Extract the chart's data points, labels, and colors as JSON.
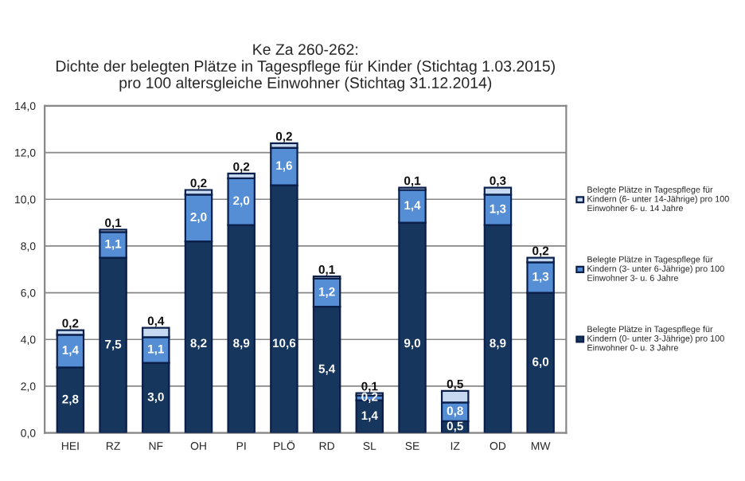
{
  "chart_data": {
    "type": "bar",
    "title": "Ke Za 260-262:\nDichte der belegten Plätze in Tagespflege für Kinder (Stichtag 1.03.2015)\npro 100 altersgleiche Einwohner (Stichtag 31.12.2014)",
    "categories": [
      "HEI",
      "RZ",
      "NF",
      "OH",
      "PI",
      "PLÖ",
      "RD",
      "SL",
      "SE",
      "IZ",
      "OD",
      "MW"
    ],
    "stacked": true,
    "series": [
      {
        "name": "Belegte Plätze in Tagespflege für\nKindern (0- unter 3-Jährige) pro 100\nEinwohner 0- u. 3 Jahre",
        "color": "#17365d",
        "values": [
          2.8,
          7.5,
          3.0,
          8.2,
          8.9,
          10.6,
          5.4,
          1.4,
          9.0,
          0.5,
          8.9,
          6.0
        ],
        "value_labels": [
          "2,8",
          "7,5",
          "3,0",
          "8,2",
          "8,9",
          "10,6",
          "5,4",
          "1,4",
          "9,0",
          "0,5",
          "8,9",
          "6,0"
        ]
      },
      {
        "name": "Belegte Plätze in Tagespflege für\nKindern (3- unter 6-Jährige) pro 100\nEinwohner 3- u. 6 Jahre",
        "color": "#558ed5",
        "values": [
          1.4,
          1.1,
          1.1,
          2.0,
          2.0,
          1.6,
          1.2,
          0.2,
          1.4,
          0.8,
          1.3,
          1.3
        ],
        "value_labels": [
          "1,4",
          "1,1",
          "1,1",
          "2,0",
          "2,0",
          "1,6",
          "1,2",
          "0,2",
          "1,4",
          "0,8",
          "1,3",
          "1,3"
        ]
      },
      {
        "name": "Belegte Plätze in Tagespflege für\nKindern (6- unter 14-Jährige) pro 100\nEinwohner 6- u. 14 Jahre",
        "color": "#c6d9f1",
        "values": [
          0.2,
          0.1,
          0.4,
          0.2,
          0.2,
          0.2,
          0.1,
          0.1,
          0.1,
          0.5,
          0.3,
          0.2
        ],
        "value_labels": [
          "0,2",
          "0,1",
          "0,4",
          "0,2",
          "0,2",
          "0,2",
          "0,1",
          "0,1",
          "0,1",
          "0,5",
          "0,3",
          "0,2"
        ]
      }
    ],
    "ylim": [
      0,
      14
    ],
    "yticks": [
      {
        "value": 0,
        "label": "0,0"
      },
      {
        "value": 2,
        "label": "2,0"
      },
      {
        "value": 4,
        "label": "4,0"
      },
      {
        "value": 6,
        "label": "6,0"
      },
      {
        "value": 8,
        "label": "8,0"
      },
      {
        "value": 10,
        "label": "10,0"
      },
      {
        "value": 12,
        "label": "12,0"
      },
      {
        "value": 14,
        "label": "14,0"
      }
    ],
    "grid": "y",
    "legend": "right"
  }
}
